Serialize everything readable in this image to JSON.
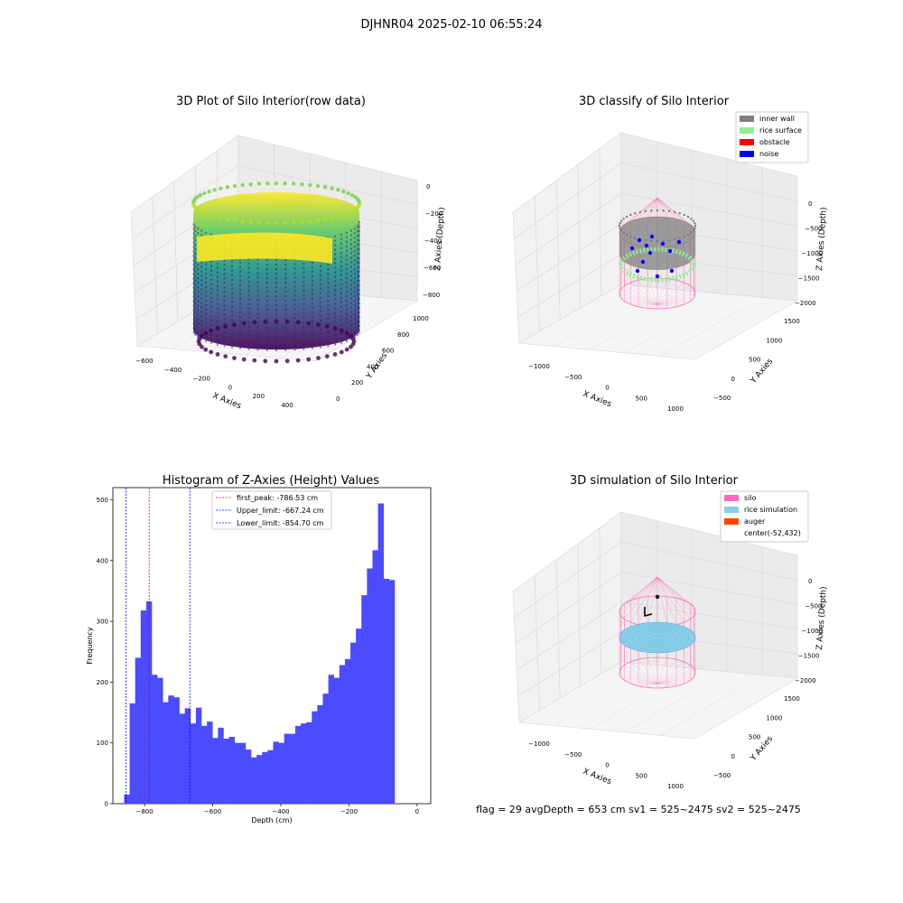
{
  "figure_title": "DJHNR04 2025-02-10 06:55:24",
  "footer_text": "flag = 29  avgDepth = 653 cm  sv1 = 525~2475  sv2 = 525~2475",
  "colors": {
    "inner_wall": "#808080",
    "rice_surface": "#90ee90",
    "obstacle": "#ff0000",
    "noise": "#0000ff",
    "silo": "#ff69b4",
    "rice_simulation": "#87ceeb",
    "auger": "#ff4500",
    "histogram": "#4b4bff"
  },
  "chart_data": [
    {
      "type": "scatter",
      "subtype": "3d",
      "title": "3D Plot of Silo Interior(row data)",
      "xlabel": "X Axies",
      "ylabel": "Y Axies",
      "zlabel": "Z Axies (Depth)",
      "x_ticks": [
        "−600",
        "−400",
        "−200",
        "0",
        "200",
        "400"
      ],
      "y_ticks": [
        "0",
        "200",
        "400",
        "600",
        "800",
        "1000"
      ],
      "z_ticks": [
        "0",
        "−200",
        "−400",
        "−600",
        "−800"
      ],
      "colormap": "viridis",
      "grid": true
    },
    {
      "type": "scatter",
      "subtype": "3d",
      "title": "3D classify of Silo Interior",
      "xlabel": "X Axies",
      "ylabel": "Y Axies",
      "zlabel": "Z Axies (Depth)",
      "x_ticks": [
        "−1000",
        "−500",
        "0",
        "500",
        "1000"
      ],
      "y_ticks": [
        "−500",
        "0",
        "500",
        "1000",
        "1500"
      ],
      "z_ticks": [
        "0",
        "−500",
        "−1000",
        "−1500",
        "−2000"
      ],
      "legend": [
        "inner wall",
        "rice surface",
        "obstacle",
        "noise"
      ],
      "legend_position": "top-right",
      "grid": true
    },
    {
      "type": "bar",
      "subtype": "histogram",
      "title": "Histogram of Z-Axies (Height) Values",
      "xlabel": "Depth (cm)",
      "ylabel": "Frequency",
      "xlim": [
        -893,
        40
      ],
      "ylim": [
        0,
        520
      ],
      "x_ticks": [
        -800,
        -600,
        -400,
        -200,
        0
      ],
      "x_tick_labels": [
        "−800",
        "−600",
        "−400",
        "−200",
        "0"
      ],
      "y_ticks": [
        0,
        100,
        200,
        300,
        400,
        500
      ],
      "bin_start": -860,
      "bin_width": 16.2,
      "values": [
        15,
        165,
        240,
        318,
        333,
        212,
        207,
        167,
        178,
        175,
        148,
        157,
        132,
        158,
        128,
        135,
        108,
        125,
        107,
        110,
        100,
        100,
        89,
        76,
        80,
        85,
        88,
        102,
        100,
        115,
        115,
        128,
        132,
        134,
        152,
        162,
        181,
        212,
        207,
        228,
        238,
        265,
        288,
        343,
        387,
        417,
        494,
        370,
        368
      ],
      "reference_lines": [
        {
          "label": "first_peak: -786.53 cm",
          "x": -786.53,
          "color": "#ff0000"
        },
        {
          "label": "Upper_limit: -667.24 cm",
          "x": -667.24,
          "color": "#0000ff"
        },
        {
          "label": "Lower_limit: -854.70 cm",
          "x": -854.7,
          "color": "#0000ff"
        }
      ],
      "legend_position": "top-center",
      "grid": false
    },
    {
      "type": "scatter",
      "subtype": "3d",
      "title": "3D simulation of Silo Interior",
      "xlabel": "X Axies",
      "ylabel": "Y Axies",
      "zlabel": "Z Axies (Depth)",
      "x_ticks": [
        "−1000",
        "−500",
        "0",
        "500",
        "1000"
      ],
      "y_ticks": [
        "−500",
        "0",
        "500",
        "1000",
        "1500"
      ],
      "z_ticks": [
        "0",
        "−500",
        "−1000",
        "−1500",
        "−2000"
      ],
      "legend": [
        "silo",
        "rice simulation",
        "auger",
        "center(-52,432)"
      ],
      "legend_position": "top-right",
      "grid": true
    }
  ]
}
